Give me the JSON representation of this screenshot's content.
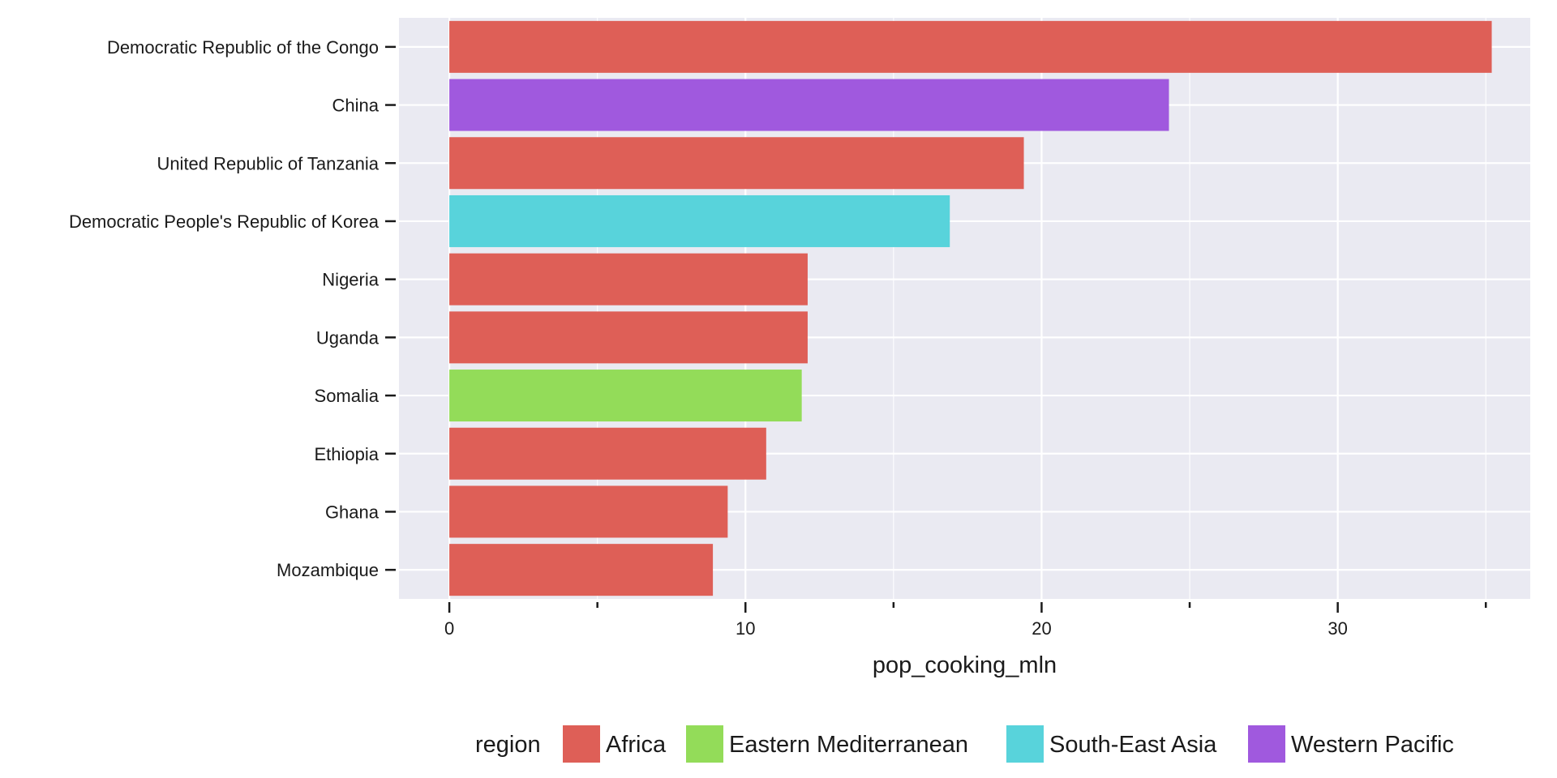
{
  "chart_data": {
    "type": "bar",
    "orientation": "horizontal",
    "xlabel": "pop_cooking_mln",
    "ylabel": "",
    "xlim": [
      -1.7,
      36.5
    ],
    "x_ticks_major": [
      0,
      10,
      20,
      30
    ],
    "x_ticks_minor": [
      5,
      15,
      25,
      35
    ],
    "grid": true,
    "legend_position": "bottom",
    "legend_title": "region",
    "categories": [
      "Democratic Republic of the Congo",
      "China",
      "United Republic of Tanzania",
      "Democratic People's Republic of Korea",
      "Nigeria",
      "Uganda",
      "Somalia",
      "Ethiopia",
      "Ghana",
      "Mozambique"
    ],
    "values": [
      35.2,
      24.3,
      19.4,
      16.9,
      12.1,
      12.1,
      11.9,
      10.7,
      9.4,
      8.9
    ],
    "bar_regions": [
      "Africa",
      "Western Pacific",
      "Africa",
      "South-East Asia",
      "Africa",
      "Africa",
      "Eastern Mediterranean",
      "Africa",
      "Africa",
      "Africa"
    ],
    "regions": [
      {
        "name": "Africa",
        "color": "#de5f57"
      },
      {
        "name": "Eastern Mediterranean",
        "color": "#93dc59"
      },
      {
        "name": "South-East Asia",
        "color": "#58d3db"
      },
      {
        "name": "Western Pacific",
        "color": "#a059de"
      }
    ],
    "panel_background": "#eaeaf2",
    "grid_color": "#ffffff"
  }
}
